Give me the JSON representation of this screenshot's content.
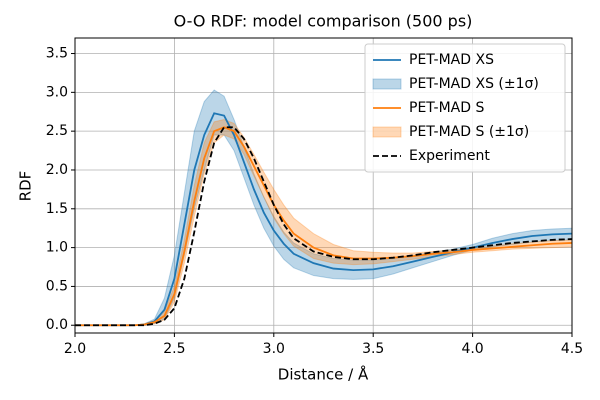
{
  "chart_data": {
    "type": "line",
    "title": "O-O RDF: model comparison (500 ps)",
    "x_label": "Distance / Å",
    "y_label": "RDF",
    "x": [
      2.0,
      2.1,
      2.2,
      2.3,
      2.35,
      2.4,
      2.45,
      2.5,
      2.55,
      2.6,
      2.65,
      2.7,
      2.75,
      2.8,
      2.85,
      2.9,
      2.95,
      3.0,
      3.05,
      3.1,
      3.2,
      3.3,
      3.4,
      3.5,
      3.6,
      3.7,
      3.8,
      3.9,
      4.0,
      4.1,
      4.2,
      4.3,
      4.4,
      4.5
    ],
    "series": [
      {
        "name": "PET-MAD XS",
        "color": "#1f77b4",
        "linestyle": "solid",
        "values": [
          0,
          0,
          0,
          0,
          0.01,
          0.05,
          0.2,
          0.6,
          1.3,
          2.0,
          2.45,
          2.73,
          2.7,
          2.45,
          2.1,
          1.75,
          1.45,
          1.22,
          1.05,
          0.92,
          0.8,
          0.73,
          0.71,
          0.72,
          0.76,
          0.82,
          0.88,
          0.94,
          1.0,
          1.06,
          1.11,
          1.15,
          1.17,
          1.18
        ],
        "band": {
          "name": "PET-MAD XS (±1σ)",
          "upper": [
            0,
            0,
            0,
            0,
            0.02,
            0.08,
            0.35,
            0.9,
            1.7,
            2.5,
            2.88,
            3.03,
            2.95,
            2.65,
            2.3,
            1.95,
            1.65,
            1.4,
            1.2,
            1.06,
            0.92,
            0.86,
            0.84,
            0.84,
            0.86,
            0.9,
            0.94,
            0.98,
            1.04,
            1.12,
            1.18,
            1.22,
            1.24,
            1.25
          ],
          "lower": [
            0,
            0,
            0,
            0,
            0,
            0.02,
            0.08,
            0.35,
            0.9,
            1.5,
            2.0,
            2.45,
            2.45,
            2.25,
            1.9,
            1.55,
            1.25,
            1.02,
            0.85,
            0.74,
            0.64,
            0.6,
            0.59,
            0.6,
            0.66,
            0.74,
            0.82,
            0.9,
            0.97,
            1.01,
            1.04,
            1.07,
            1.09,
            1.1
          ]
        }
      },
      {
        "name": "PET-MAD S",
        "color": "#ff7f0e",
        "linestyle": "solid",
        "values": [
          0,
          0,
          0,
          0,
          0.01,
          0.04,
          0.12,
          0.4,
          0.95,
          1.6,
          2.15,
          2.5,
          2.55,
          2.5,
          2.3,
          2.05,
          1.8,
          1.55,
          1.35,
          1.18,
          1.0,
          0.9,
          0.86,
          0.86,
          0.87,
          0.89,
          0.92,
          0.94,
          0.97,
          0.99,
          1.01,
          1.03,
          1.05,
          1.06
        ],
        "band": {
          "name": "PET-MAD S (±1σ)",
          "upper": [
            0,
            0,
            0,
            0,
            0.02,
            0.06,
            0.18,
            0.5,
            1.1,
            1.8,
            2.35,
            2.62,
            2.65,
            2.6,
            2.42,
            2.2,
            1.97,
            1.75,
            1.55,
            1.38,
            1.18,
            1.04,
            0.96,
            0.94,
            0.93,
            0.93,
            0.95,
            0.97,
            0.99,
            1.02,
            1.05,
            1.07,
            1.09,
            1.1
          ],
          "lower": [
            0,
            0,
            0,
            0,
            0,
            0.02,
            0.07,
            0.3,
            0.8,
            1.4,
            1.95,
            2.35,
            2.45,
            2.4,
            2.2,
            1.92,
            1.65,
            1.38,
            1.18,
            1.02,
            0.86,
            0.8,
            0.78,
            0.79,
            0.82,
            0.85,
            0.88,
            0.91,
            0.94,
            0.96,
            0.98,
            0.99,
            1.0,
            1.01
          ]
        }
      },
      {
        "name": "Experiment",
        "color": "#000000",
        "linestyle": "dashed",
        "values": [
          0,
          0,
          0,
          0,
          0,
          0.02,
          0.07,
          0.22,
          0.6,
          1.2,
          1.85,
          2.35,
          2.55,
          2.55,
          2.4,
          2.15,
          1.85,
          1.55,
          1.3,
          1.12,
          0.95,
          0.88,
          0.85,
          0.85,
          0.87,
          0.9,
          0.94,
          0.97,
          1.0,
          1.03,
          1.06,
          1.08,
          1.1,
          1.11
        ]
      }
    ],
    "xlim": [
      2.0,
      4.5
    ],
    "ylim": [
      -0.1,
      3.7
    ],
    "xticks": [
      {
        "value": 2,
        "label": "2.0"
      },
      2.5,
      {
        "value": 3,
        "label": "3.0"
      },
      3.5,
      {
        "value": 4,
        "label": "4.0"
      },
      4.5
    ],
    "yticks": [
      {
        "value": 0,
        "label": "0.0"
      },
      0.5,
      {
        "value": 1,
        "label": "1.0"
      },
      1.5,
      {
        "value": 2,
        "label": "2.0"
      },
      2.5,
      {
        "value": 3,
        "label": "3.0"
      },
      3.5
    ],
    "grid": true,
    "legend": "upper-right"
  }
}
